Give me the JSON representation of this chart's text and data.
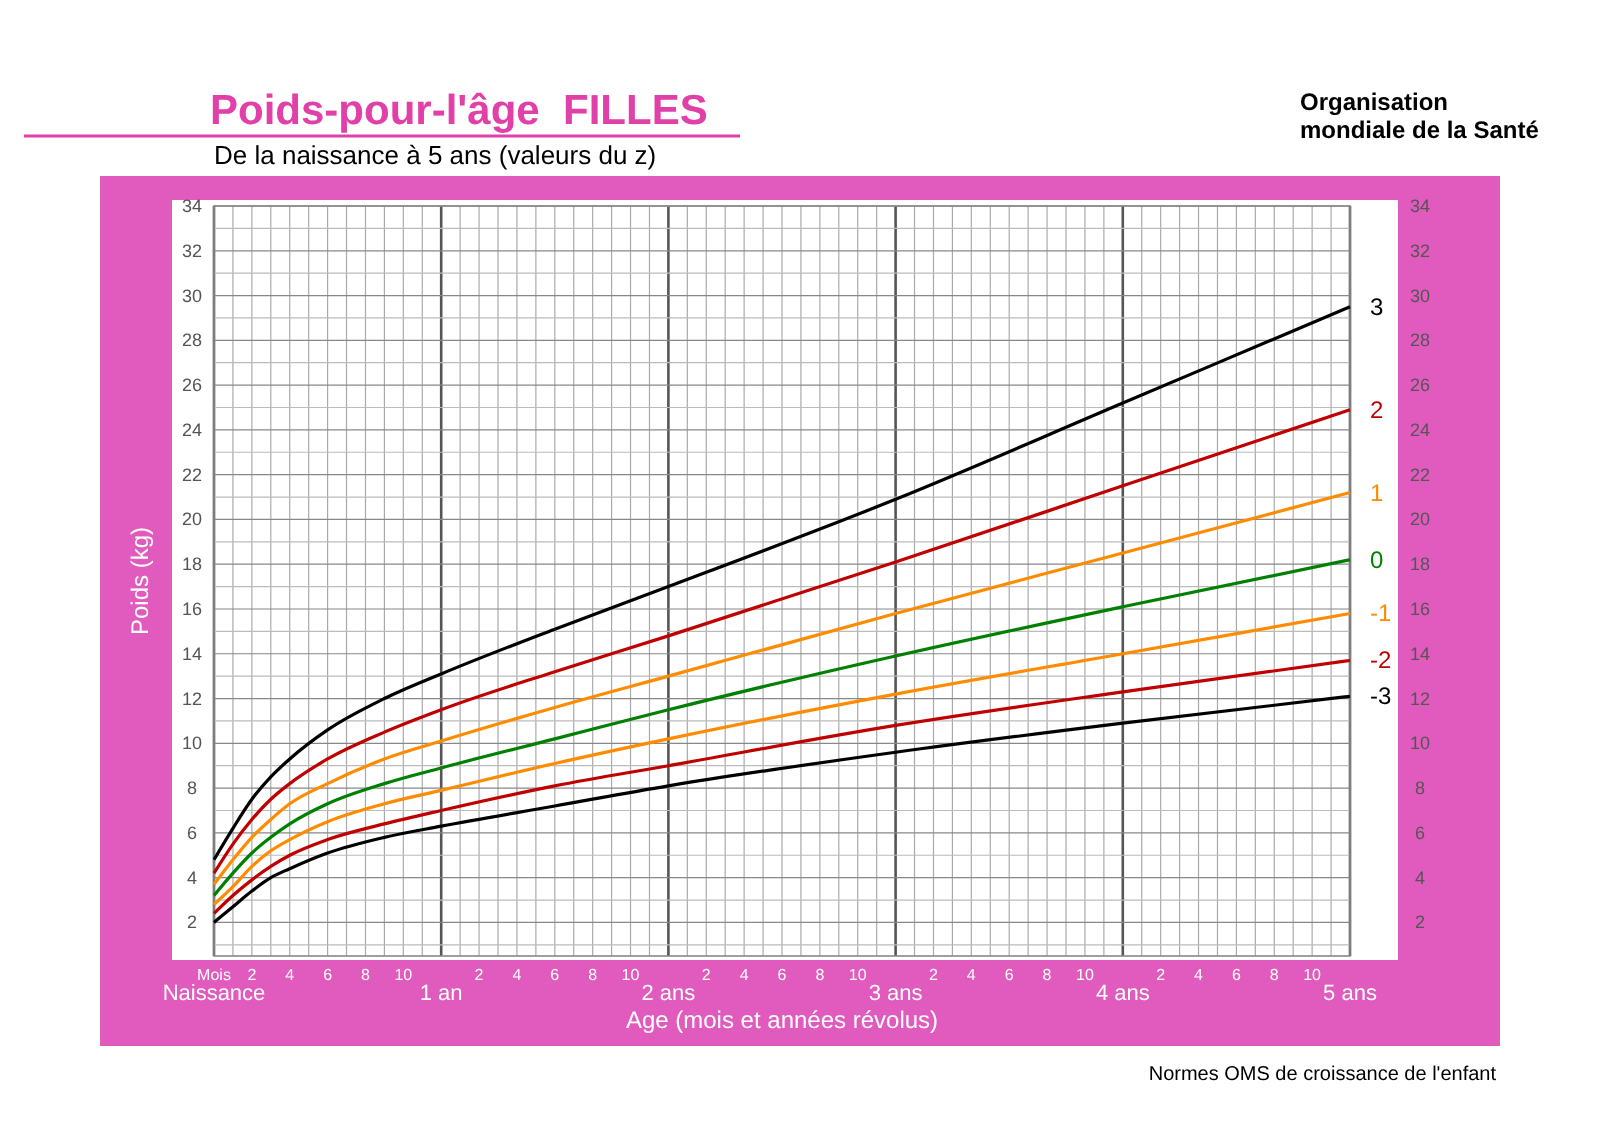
{
  "chart_data": {
    "type": "line",
    "title": "Poids-pour-l'âge  FILLES",
    "subtitle": "De la naissance à 5 ans (valeurs du z)",
    "xlabel": "Age (mois et années révolus)",
    "ylabel": "Poids (kg)",
    "annotations": [
      "Mois",
      "2",
      "4",
      "6",
      "8",
      "10",
      "2",
      "4",
      "6",
      "8",
      "10",
      "2",
      "4",
      "6",
      "8",
      "10",
      "2",
      "4",
      "6",
      "8",
      "10",
      "2",
      "4",
      "6",
      "8",
      "10",
      "Organisation mondiale de la Santé",
      "Normes OMS de croissance de l'enfant"
    ],
    "x": [
      0,
      0.0833,
      0.1667,
      0.25,
      0.3333,
      0.5,
      0.75,
      1,
      1.5,
      2,
      3,
      4,
      5
    ],
    "series": [
      {
        "name": "3",
        "color": "#000000",
        "values": [
          4.8,
          6.2,
          7.5,
          8.5,
          9.3,
          10.6,
          12.0,
          13.1,
          15.1,
          17.0,
          20.9,
          25.2,
          29.5
        ]
      },
      {
        "name": "2",
        "color": "#c00000",
        "values": [
          4.2,
          5.5,
          6.6,
          7.5,
          8.2,
          9.3,
          10.5,
          11.5,
          13.2,
          14.8,
          18.1,
          21.5,
          24.9
        ]
      },
      {
        "name": "1",
        "color": "#ff8c00",
        "values": [
          3.7,
          4.8,
          5.8,
          6.6,
          7.3,
          8.2,
          9.3,
          10.1,
          11.6,
          13.0,
          15.8,
          18.5,
          21.2
        ]
      },
      {
        "name": "0",
        "color": "#008000",
        "values": [
          3.2,
          4.2,
          5.1,
          5.8,
          6.4,
          7.3,
          8.2,
          8.9,
          10.2,
          11.5,
          13.9,
          16.1,
          18.2
        ]
      },
      {
        "name": "-1",
        "color": "#ff8c00",
        "values": [
          2.8,
          3.6,
          4.5,
          5.2,
          5.7,
          6.5,
          7.3,
          7.9,
          9.1,
          10.2,
          12.2,
          14.0,
          15.8
        ]
      },
      {
        "name": "-2",
        "color": "#c00000",
        "values": [
          2.4,
          3.2,
          3.9,
          4.5,
          5.0,
          5.7,
          6.4,
          7.0,
          8.1,
          9.0,
          10.8,
          12.3,
          13.7
        ]
      },
      {
        "name": "-3",
        "color": "#000000",
        "values": [
          2.0,
          2.7,
          3.4,
          4.0,
          4.4,
          5.1,
          5.8,
          6.3,
          7.2,
          8.1,
          9.6,
          10.9,
          12.1
        ]
      }
    ],
    "xlim": [
      0,
      5
    ],
    "xticks": [
      {
        "value": 0,
        "label": "Naissance"
      },
      {
        "value": 0.0833,
        "label": null
      },
      {
        "value": 0.1667,
        "label": null
      },
      {
        "value": 0.25,
        "label": null
      },
      {
        "value": 0.3333,
        "label": null
      },
      {
        "value": 0.4167,
        "label": null
      },
      {
        "value": 0.5,
        "label": null
      },
      {
        "value": 0.5833,
        "label": null
      },
      {
        "value": 0.6667,
        "label": null
      },
      {
        "value": 0.75,
        "label": null
      },
      {
        "value": 0.8333,
        "label": null
      },
      {
        "value": 0.9167,
        "label": null
      },
      {
        "value": 1,
        "label": "1 an"
      },
      {
        "value": 1.0833,
        "label": null
      },
      {
        "value": 1.1667,
        "label": null
      },
      {
        "value": 1.25,
        "label": null
      },
      {
        "value": 1.3333,
        "label": null
      },
      {
        "value": 1.4167,
        "label": null
      },
      {
        "value": 1.5,
        "label": null
      },
      {
        "value": 1.5833,
        "label": null
      },
      {
        "value": 1.6667,
        "label": null
      },
      {
        "value": 1.75,
        "label": null
      },
      {
        "value": 1.8333,
        "label": null
      },
      {
        "value": 1.9167,
        "label": null
      },
      {
        "value": 2,
        "label": "2 ans"
      },
      {
        "value": 2.0833,
        "label": null
      },
      {
        "value": 2.1667,
        "label": null
      },
      {
        "value": 2.25,
        "label": null
      },
      {
        "value": 2.3333,
        "label": null
      },
      {
        "value": 2.4167,
        "label": null
      },
      {
        "value": 2.5,
        "label": null
      },
      {
        "value": 2.5833,
        "label": null
      },
      {
        "value": 2.6667,
        "label": null
      },
      {
        "value": 2.75,
        "label": null
      },
      {
        "value": 2.8333,
        "label": null
      },
      {
        "value": 2.9167,
        "label": null
      },
      {
        "value": 3,
        "label": "3 ans"
      },
      {
        "value": 3.0833,
        "label": null
      },
      {
        "value": 3.1667,
        "label": null
      },
      {
        "value": 3.25,
        "label": null
      },
      {
        "value": 3.3333,
        "label": null
      },
      {
        "value": 3.4167,
        "label": null
      },
      {
        "value": 3.5,
        "label": null
      },
      {
        "value": 3.5833,
        "label": null
      },
      {
        "value": 3.6667,
        "label": null
      },
      {
        "value": 3.75,
        "label": null
      },
      {
        "value": 3.8333,
        "label": null
      },
      {
        "value": 3.9167,
        "label": null
      },
      {
        "value": 4,
        "label": "4 ans"
      },
      {
        "value": 4.0833,
        "label": null
      },
      {
        "value": 4.1667,
        "label": null
      },
      {
        "value": 4.25,
        "label": null
      },
      {
        "value": 4.3333,
        "label": null
      },
      {
        "value": 4.4167,
        "label": null
      },
      {
        "value": 4.5,
        "label": null
      },
      {
        "value": 4.5833,
        "label": null
      },
      {
        "value": 4.6667,
        "label": null
      },
      {
        "value": 4.75,
        "label": null
      },
      {
        "value": 4.8333,
        "label": null
      },
      {
        "value": 4.9167,
        "label": null
      },
      {
        "value": 5,
        "label": "5 ans"
      }
    ],
    "ylim": [
      0.5,
      34
    ],
    "yticks": [
      {
        "value": 1,
        "label": null
      },
      2,
      {
        "value": 3,
        "label": null
      },
      4,
      {
        "value": 5,
        "label": null
      },
      6,
      {
        "value": 7,
        "label": null
      },
      8,
      {
        "value": 9,
        "label": null
      },
      10,
      {
        "value": 11,
        "label": null
      },
      12,
      {
        "value": 13,
        "label": null
      },
      14,
      {
        "value": 15,
        "label": null
      },
      16,
      {
        "value": 17,
        "label": null
      },
      18,
      {
        "value": 19,
        "label": null
      },
      20,
      {
        "value": 21,
        "label": null
      },
      22,
      {
        "value": 23,
        "label": null
      },
      24,
      {
        "value": 25,
        "label": null
      },
      26,
      {
        "value": 27,
        "label": null
      },
      28,
      {
        "value": 29,
        "label": null
      },
      30,
      {
        "value": 31,
        "label": null
      },
      32,
      {
        "value": 33,
        "label": null
      },
      34
    ],
    "y2lim": [
      0.5,
      34
    ],
    "y2ticks": [
      2,
      4,
      6,
      8,
      10,
      12,
      14,
      16,
      18,
      20,
      22,
      24,
      26,
      28,
      30,
      32,
      34
    ],
    "grid": true,
    "legend": false,
    "marker": "none",
    "line_style": "solid"
  }
}
